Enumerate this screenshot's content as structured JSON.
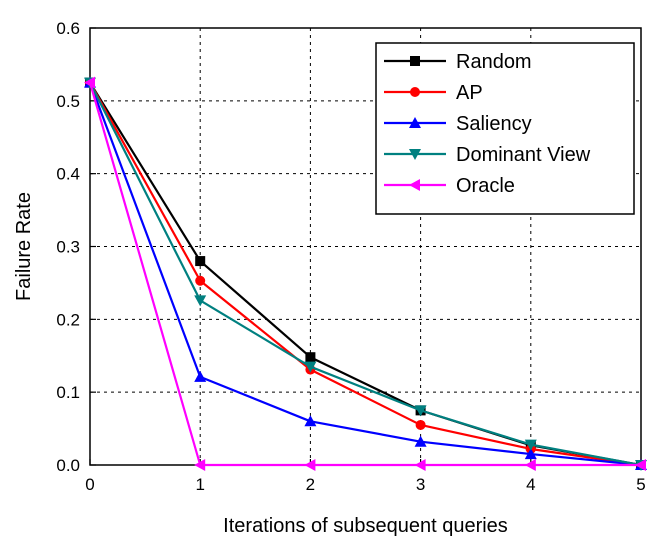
{
  "chart_data": {
    "type": "line",
    "title": "",
    "xlabel": "Iterations of subsequent queries",
    "ylabel": "Failure Rate",
    "x": [
      0,
      1,
      2,
      3,
      4,
      5
    ],
    "xlim": [
      0,
      5
    ],
    "ylim": [
      0,
      0.6
    ],
    "xticks": [
      "0",
      "1",
      "2",
      "3",
      "4",
      "5"
    ],
    "yticks": [
      "0.0",
      "0.1",
      "0.2",
      "0.3",
      "0.4",
      "0.5",
      "0.6"
    ],
    "grid": true,
    "legend_position": "top-right",
    "series": [
      {
        "name": "Random",
        "color": "#000000",
        "marker": "square",
        "values": [
          0.525,
          0.28,
          0.148,
          0.075,
          0.027,
          0.0
        ]
      },
      {
        "name": "AP",
        "color": "#ff0000",
        "marker": "circle",
        "values": [
          0.525,
          0.253,
          0.131,
          0.055,
          0.022,
          0.0
        ]
      },
      {
        "name": "Saliency",
        "color": "#0000ff",
        "marker": "triangle-up",
        "values": [
          0.525,
          0.121,
          0.06,
          0.032,
          0.015,
          0.0
        ]
      },
      {
        "name": "Dominant View",
        "color": "#008080",
        "marker": "triangle-down",
        "values": [
          0.525,
          0.226,
          0.135,
          0.075,
          0.028,
          0.0
        ]
      },
      {
        "name": "Oracle",
        "color": "#ff00ff",
        "marker": "triangle-left",
        "values": [
          0.525,
          0.0,
          0.0,
          0.0,
          0.0,
          0.0
        ]
      }
    ]
  }
}
